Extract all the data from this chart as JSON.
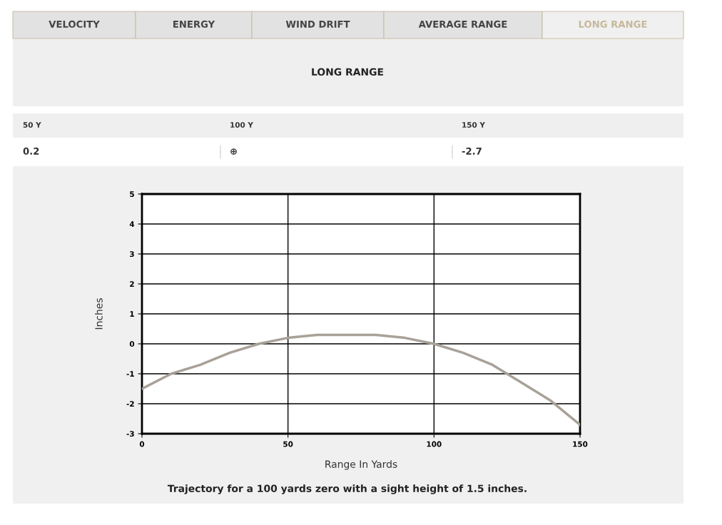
{
  "chart_data": {
    "type": "line",
    "title": "LONG RANGE",
    "xlabel": "Range In Yards",
    "ylabel": "Inches",
    "x": [
      0,
      10,
      20,
      30,
      40,
      50,
      60,
      70,
      80,
      90,
      100,
      110,
      120,
      130,
      140,
      150
    ],
    "series": [
      {
        "color": "#a8a198",
        "values": [
          -1.5,
          -1.0,
          -0.7,
          -0.3,
          0.0,
          0.2,
          0.3,
          0.3,
          0.3,
          0.2,
          0.0,
          -0.3,
          -0.7,
          -1.3,
          -1.9,
          -2.7
        ]
      }
    ],
    "xlim": [
      0,
      150
    ],
    "xticks": [
      0,
      50,
      100,
      150
    ],
    "ylim": [
      -3,
      5
    ],
    "yticks": [
      -3,
      -2,
      -1,
      0,
      1,
      2,
      3,
      4,
      5
    ],
    "grid": true,
    "marker": "none",
    "line_style": "solid",
    "legend": false,
    "annotations": [
      "VELOCITY",
      "ENERGY",
      "WIND DRIFT",
      "AVERAGE RANGE",
      "LONG RANGE",
      "50 Y",
      "100 Y",
      "150 Y",
      "0.2",
      "⊕",
      "-2.7",
      "Trajectory for a 100 yards zero with a sight height of 1.5 inches."
    ]
  }
}
